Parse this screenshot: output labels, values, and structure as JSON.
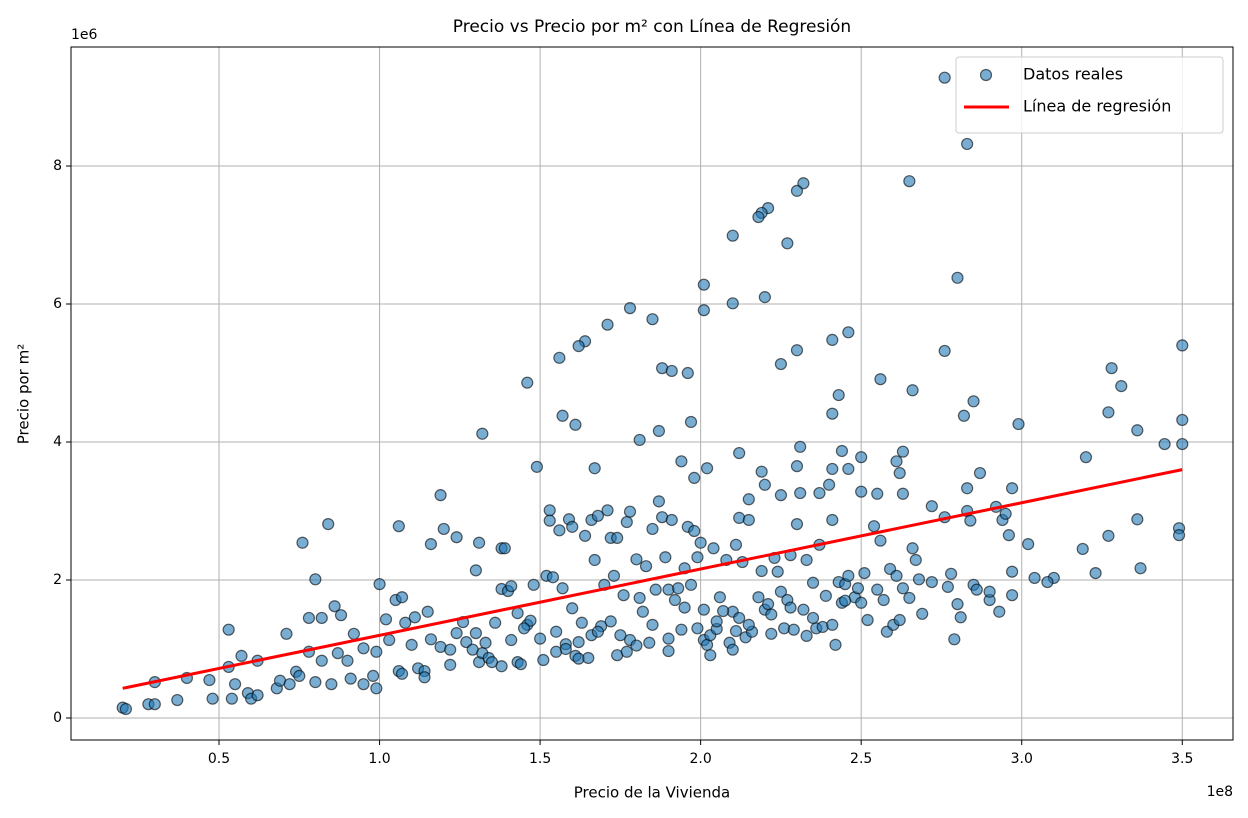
{
  "chart_data": {
    "type": "scatter",
    "title": "Precio vs Precio por m² con Línea de Regresión",
    "xlabel": "Precio de la Vivienda",
    "ylabel": "Precio por m²",
    "x_offset_label": "1e8",
    "y_offset_label": "1e6",
    "xlim": [
      3900000.0,
      365800000.0
    ],
    "ylim": [
      -319000.0,
      9725000.0
    ],
    "xticks": [
      {
        "value": 50000000.0,
        "label": "0.5"
      },
      {
        "value": 100000000.0,
        "label": "1.0"
      },
      {
        "value": 150000000.0,
        "label": "1.5"
      },
      {
        "value": 200000000.0,
        "label": "2.0"
      },
      {
        "value": 250000000.0,
        "label": "2.5"
      },
      {
        "value": 300000000.0,
        "label": "3.0"
      },
      {
        "value": 350000000.0,
        "label": "3.5"
      }
    ],
    "yticks": [
      0,
      {
        "value": 2000000.0,
        "label": "2"
      },
      {
        "value": 4000000.0,
        "label": "4"
      },
      {
        "value": 6000000.0,
        "label": "6"
      },
      {
        "value": 8000000.0,
        "label": "8"
      }
    ],
    "grid": true,
    "legend": "upper right",
    "series": [
      {
        "name": "Datos reales",
        "type": "scatter",
        "color": "#1f77b4",
        "x": [
          350000000.0,
          350000000.0,
          350000000.0,
          344500000.0,
          331000000.0,
          327000000.0,
          328000000.0,
          336000000.0,
          336000000.0,
          327000000.0,
          323000000.0,
          337000000.0,
          349000000.0,
          349000000.0,
          320000000.0,
          319000000.0,
          310000000.0,
          308000000.0,
          304000000.0,
          302000000.0,
          299000000.0,
          297000000.0,
          297000000.0,
          296000000.0,
          294000000.0,
          295000000.0,
          276000000.0,
          283000000.0,
          280000000.0,
          265000000.0,
          276000000.0,
          285000000.0,
          282000000.0,
          266000000.0,
          256000000.0,
          246000000.0,
          241000000.0,
          243000000.0,
          241000000.0,
          232000000.0,
          230000000.0,
          221000000.0,
          219000000.0,
          218000000.0,
          227000000.0,
          210000000.0,
          220000000.0,
          210000000.0,
          201000000.0,
          201000000.0,
          230000000.0,
          225000000.0,
          178000000.0,
          185000000.0,
          171000000.0,
          164000000.0,
          162000000.0,
          156000000.0,
          188000000.0,
          191000000.0,
          196000000.0,
          146000000.0,
          157000000.0,
          161000000.0,
          187000000.0,
          197000000.0,
          181000000.0,
          132000000.0,
          149000000.0,
          167000000.0,
          263000000.0,
          212000000.0,
          202000000.0,
          198000000.0,
          194000000.0,
          219000000.0,
          230000000.0,
          231000000.0,
          244000000.0,
          241000000.0,
          246000000.0,
          250000000.0,
          261000000.0,
          262000000.0,
          119000000.0,
          84000000.0,
          76000000.0,
          80000000.0,
          106000000.0,
          20000000.0,
          21000000.0,
          30000000.0,
          28000000.0,
          30000000.0,
          37000000.0,
          40000000.0,
          48000000.0,
          47000000.0,
          53000000.0,
          53000000.0,
          55000000.0,
          57000000.0,
          54000000.0,
          59000000.0,
          60000000.0,
          62000000.0,
          62000000.0,
          68000000.0,
          71000000.0,
          69000000.0,
          72000000.0,
          74000000.0,
          75000000.0,
          78000000.0,
          78000000.0,
          80000000.0,
          82000000.0,
          82000000.0,
          85000000.0,
          86000000.0,
          87000000.0,
          88000000.0,
          90000000.0,
          91000000.0,
          92000000.0,
          95000000.0,
          95000000.0,
          98000000.0,
          99000000.0,
          99000000.0,
          100000000.0,
          103000000.0,
          102000000.0,
          105000000.0,
          106000000.0,
          107000000.0,
          107000000.0,
          108000000.0,
          110000000.0,
          111000000.0,
          112000000.0,
          114000000.0,
          114000000.0,
          115000000.0,
          116000000.0,
          116000000.0,
          120000000.0,
          119000000.0,
          122000000.0,
          122000000.0,
          124000000.0,
          124000000.0,
          126000000.0,
          127000000.0,
          129000000.0,
          130000000.0,
          131000000.0,
          130000000.0,
          131000000.0,
          132000000.0,
          133000000.0,
          134000000.0,
          135000000.0,
          136000000.0,
          138000000.0,
          138000000.0,
          138000000.0,
          139000000.0,
          140000000.0,
          141000000.0,
          141000000.0,
          143000000.0,
          143000000.0,
          144000000.0,
          146000000.0,
          147000000.0,
          148000000.0,
          151000000.0,
          152000000.0,
          153000000.0,
          153000000.0,
          154000000.0,
          155000000.0,
          156000000.0,
          157000000.0,
          158000000.0,
          159000000.0,
          160000000.0,
          160000000.0,
          161000000.0,
          162000000.0,
          163000000.0,
          164000000.0,
          165000000.0,
          166000000.0,
          166000000.0,
          167000000.0,
          168000000.0,
          169000000.0,
          170000000.0,
          171000000.0,
          172000000.0,
          173000000.0,
          174000000.0,
          174000000.0,
          176000000.0,
          177000000.0,
          177000000.0,
          178000000.0,
          178000000.0,
          180000000.0,
          181000000.0,
          182000000.0,
          183000000.0,
          184000000.0,
          185000000.0,
          186000000.0,
          187000000.0,
          188000000.0,
          189000000.0,
          190000000.0,
          190000000.0,
          191000000.0,
          192000000.0,
          193000000.0,
          194000000.0,
          195000000.0,
          196000000.0,
          197000000.0,
          198000000.0,
          199000000.0,
          199000000.0,
          200000000.0,
          201000000.0,
          201000000.0,
          202000000.0,
          203000000.0,
          203000000.0,
          204000000.0,
          205000000.0,
          206000000.0,
          208000000.0,
          209000000.0,
          210000000.0,
          210000000.0,
          211000000.0,
          211000000.0,
          212000000.0,
          213000000.0,
          214000000.0,
          215000000.0,
          215000000.0,
          216000000.0,
          218000000.0,
          219000000.0,
          220000000.0,
          220000000.0,
          221000000.0,
          222000000.0,
          223000000.0,
          224000000.0,
          225000000.0,
          225000000.0,
          226000000.0,
          227000000.0,
          228000000.0,
          229000000.0,
          230000000.0,
          231000000.0,
          232000000.0,
          233000000.0,
          233000000.0,
          235000000.0,
          236000000.0,
          237000000.0,
          237000000.0,
          238000000.0,
          239000000.0,
          240000000.0,
          241000000.0,
          241000000.0,
          242000000.0,
          243000000.0,
          244000000.0,
          245000000.0,
          246000000.0,
          248000000.0,
          249000000.0,
          250000000.0,
          250000000.0,
          251000000.0,
          252000000.0,
          254000000.0,
          255000000.0,
          255000000.0,
          256000000.0,
          257000000.0,
          258000000.0,
          259000000.0,
          260000000.0,
          261000000.0,
          262000000.0,
          263000000.0,
          263000000.0,
          265000000.0,
          266000000.0,
          267000000.0,
          268000000.0,
          269000000.0,
          272000000.0,
          272000000.0,
          276000000.0,
          277000000.0,
          278000000.0,
          279000000.0,
          280000000.0,
          281000000.0,
          283000000.0,
          283000000.0,
          284000000.0,
          285000000.0,
          286000000.0,
          287000000.0,
          290000000.0,
          290000000.0,
          292000000.0,
          293000000.0,
          297000000.0,
          145000000.0,
          150000000.0,
          155000000.0,
          158000000.0,
          162000000.0,
          168000000.0,
          172000000.0,
          175000000.0,
          180000000.0,
          185000000.0,
          190000000.0,
          195000000.0,
          205000000.0,
          207000000.0,
          212000000.0,
          215000000.0,
          222000000.0,
          228000000.0,
          235000000.0,
          245000000.0
        ],
        "values": [
          5400000.0,
          4320000.0,
          3970000.0,
          3970000.0,
          4810000.0,
          4430000.0,
          5070000.0,
          4170000.0,
          2880000.0,
          2640000.0,
          2100000.0,
          2170000.0,
          2750000.0,
          2650000.0,
          3780000.0,
          2450000.0,
          2030000.0,
          1970000.0,
          2030000.0,
          2520000.0,
          4260000.0,
          2120000.0,
          3330000.0,
          2650000.0,
          2870000.0,
          2960000.0,
          9280000.0,
          8320000.0,
          6380000.0,
          7780000.0,
          5320000.0,
          4590000.0,
          4380000.0,
          4750000.0,
          4910000.0,
          5590000.0,
          5480000.0,
          4680000.0,
          4410000.0,
          7750000.0,
          7640000.0,
          7390000.0,
          7320000.0,
          7260000.0,
          6880000.0,
          6990000.0,
          6100000.0,
          6010000.0,
          6280000.0,
          5910000.0,
          5330000.0,
          5130000.0,
          5940000.0,
          5780000.0,
          5700000.0,
          5460000.0,
          5390000.0,
          5220000.0,
          5070000.0,
          5030000.0,
          5000000.0,
          4860000.0,
          4380000.0,
          4250000.0,
          4160000.0,
          4290000.0,
          4030000.0,
          4120000.0,
          3640000.0,
          3620000.0,
          3860000.0,
          3840000.0,
          3620000.0,
          3480000.0,
          3720000.0,
          3570000.0,
          3650000.0,
          3930000.0,
          3870000.0,
          3610000.0,
          3610000.0,
          3780000.0,
          3720000.0,
          3550000.0,
          3230000.0,
          2810000.0,
          2540000.0,
          2010000.0,
          2780000.0,
          150000.0,
          130000.0,
          520000.0,
          200000.0,
          200000.0,
          260000.0,
          580000.0,
          280000.0,
          550000.0,
          1280000.0,
          740000.0,
          490000.0,
          900000.0,
          280000.0,
          360000.0,
          280000.0,
          830000.0,
          330000.0,
          430000.0,
          1220000.0,
          540000.0,
          490000.0,
          670000.0,
          610000.0,
          960000.0,
          1450000.0,
          520000.0,
          1450000.0,
          830000.0,
          490000.0,
          1620000.0,
          940000.0,
          1490000.0,
          830000.0,
          570000.0,
          1220000.0,
          1010000.0,
          490000.0,
          610000.0,
          430000.0,
          960000.0,
          1940000.0,
          1130000.0,
          1430000.0,
          1710000.0,
          680000.0,
          1750000.0,
          640000.0,
          1380000.0,
          1060000.0,
          1460000.0,
          720000.0,
          680000.0,
          590000.0,
          1540000.0,
          2520000.0,
          1140000.0,
          2740000.0,
          1030000.0,
          770000.0,
          990000.0,
          2620000.0,
          1230000.0,
          1390000.0,
          1100000.0,
          990000.0,
          1230000.0,
          2540000.0,
          2140000.0,
          810000.0,
          940000.0,
          1090000.0,
          870000.0,
          810000.0,
          1380000.0,
          1870000.0,
          750000.0,
          2460000.0,
          2460000.0,
          1840000.0,
          1130000.0,
          1910000.0,
          1520000.0,
          810000.0,
          780000.0,
          1350000.0,
          1410000.0,
          1930000.0,
          840000.0,
          2060000.0,
          3010000.0,
          2860000.0,
          2040000.0,
          960000.0,
          2720000.0,
          1880000.0,
          1070000.0,
          2880000.0,
          2770000.0,
          1590000.0,
          900000.0,
          860000.0,
          1380000.0,
          2640000.0,
          870000.0,
          1200000.0,
          2870000.0,
          2290000.0,
          2930000.0,
          1330000.0,
          1930000.0,
          3010000.0,
          2610000.0,
          2060000.0,
          910000.0,
          2610000.0,
          1780000.0,
          2840000.0,
          960000.0,
          1130000.0,
          2990000.0,
          2300000.0,
          1740000.0,
          1540000.0,
          2200000.0,
          1090000.0,
          2740000.0,
          1860000.0,
          3140000.0,
          2910000.0,
          2330000.0,
          1860000.0,
          970000.0,
          2870000.0,
          1710000.0,
          1880000.0,
          1280000.0,
          2170000.0,
          2770000.0,
          1930000.0,
          2710000.0,
          1300000.0,
          2330000.0,
          2540000.0,
          1570000.0,
          1130000.0,
          1060000.0,
          1200000.0,
          910000.0,
          2460000.0,
          1290000.0,
          1750000.0,
          2290000.0,
          1090000.0,
          990000.0,
          1540000.0,
          2510000.0,
          1260000.0,
          2900000.0,
          2260000.0,
          1170000.0,
          3170000.0,
          2870000.0,
          1250000.0,
          1750000.0,
          2130000.0,
          3380000.0,
          1570000.0,
          1650000.0,
          1220000.0,
          2320000.0,
          2120000.0,
          1830000.0,
          3230000.0,
          1300000.0,
          1710000.0,
          2360000.0,
          1280000.0,
          2810000.0,
          3260000.0,
          1570000.0,
          1190000.0,
          2290000.0,
          1960000.0,
          1300000.0,
          2510000.0,
          3260000.0,
          1320000.0,
          1770000.0,
          3380000.0,
          2870000.0,
          1350000.0,
          1060000.0,
          1970000.0,
          1670000.0,
          1940000.0,
          2060000.0,
          1750000.0,
          1880000.0,
          3280000.0,
          1670000.0,
          2100000.0,
          1420000.0,
          2780000.0,
          3250000.0,
          1860000.0,
          2570000.0,
          1710000.0,
          1250000.0,
          2160000.0,
          1350000.0,
          2060000.0,
          1420000.0,
          3250000.0,
          1880000.0,
          1740000.0,
          2460000.0,
          2290000.0,
          2010000.0,
          1510000.0,
          1970000.0,
          3070000.0,
          2910000.0,
          1900000.0,
          2090000.0,
          1140000.0,
          1650000.0,
          1460000.0,
          3330000.0,
          3000000.0,
          2860000.0,
          1930000.0,
          1860000.0,
          3550000.0,
          1710000.0,
          1830000.0,
          3060000.0,
          1540000.0,
          1780000.0,
          1300000.0,
          1150000.0,
          1250000.0,
          1000000.0,
          1100000.0,
          1250000.0,
          1400000.0,
          1200000.0,
          1050000.0,
          1350000.0,
          1150000.0,
          1600000.0,
          1400000.0,
          1550000.0,
          1450000.0,
          1350000.0,
          1500000.0,
          1600000.0,
          1450000.0,
          1700000.0
        ]
      },
      {
        "name": "Línea de regresión",
        "type": "line",
        "color": "#ff0000",
        "x": [
          20000000.0,
          350000000.0
        ],
        "values": [
          430000.0,
          3600000.0
        ]
      }
    ]
  }
}
